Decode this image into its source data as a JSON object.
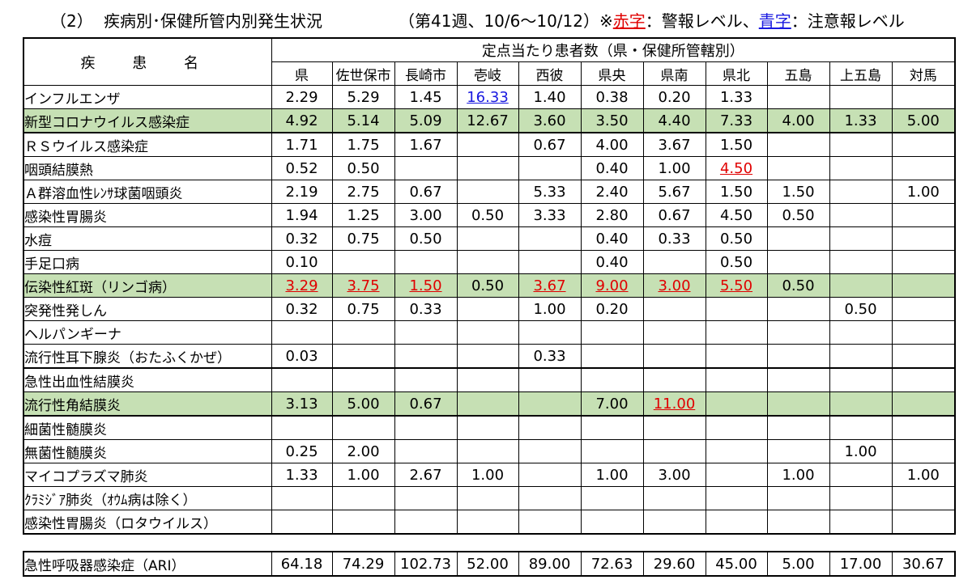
{
  "heading": {
    "section": "（2）",
    "title": "疾病別･保健所管内別発生状況",
    "week_pre": "（第41週、10/6～10/12）※",
    "red_key": "赤字",
    "red_desc": "：警報レベル、",
    "blue_key": "青字",
    "blue_desc": "：注意報レベル"
  },
  "legend_colors": {
    "alarm": "#e00000",
    "caution": "#1a1ae0",
    "highlight": "#c6e0b4"
  },
  "table": {
    "name_header": "疾 患 名",
    "group_header": "定点当たり患者数（県・保健所管轄別）",
    "regions": [
      "県",
      "佐世保市",
      "長崎市",
      "壱岐",
      "西彼",
      "県央",
      "県南",
      "県北",
      "五島",
      "上五島",
      "対馬"
    ],
    "rows": [
      {
        "name": "インフルエンザ",
        "values": [
          "2.29",
          "5.29",
          "1.45",
          "16.33",
          "1.40",
          "0.38",
          "0.20",
          "1.33",
          "",
          "",
          ""
        ],
        "flags": [
          "",
          "",
          "",
          "caution",
          "",
          "",
          "",
          "",
          "",
          "",
          ""
        ],
        "highlight": false,
        "top": false
      },
      {
        "name": "新型コロナウイルス感染症",
        "values": [
          "4.92",
          "5.14",
          "5.09",
          "12.67",
          "3.60",
          "3.50",
          "4.40",
          "7.33",
          "4.00",
          "1.33",
          "5.00"
        ],
        "flags": [
          "",
          "",
          "",
          "",
          "",
          "",
          "",
          "",
          "",
          "",
          ""
        ],
        "highlight": true,
        "top": false
      },
      {
        "name": "ＲＳウイルス感染症",
        "values": [
          "1.71",
          "1.75",
          "1.67",
          "",
          "0.67",
          "4.00",
          "3.67",
          "1.50",
          "",
          "",
          ""
        ],
        "flags": [
          "",
          "",
          "",
          "",
          "",
          "",
          "",
          "",
          "",
          "",
          ""
        ],
        "highlight": false,
        "top": true
      },
      {
        "name": "咽頭結膜熱",
        "values": [
          "0.52",
          "0.50",
          "",
          "",
          "",
          "0.40",
          "1.00",
          "4.50",
          "",
          "",
          ""
        ],
        "flags": [
          "",
          "",
          "",
          "",
          "",
          "",
          "",
          "alarm",
          "",
          "",
          ""
        ],
        "highlight": false,
        "top": false
      },
      {
        "name": "Ａ群溶血性ﾚﾝｻ球菌咽頭炎",
        "values": [
          "2.19",
          "2.75",
          "0.67",
          "",
          "5.33",
          "2.40",
          "5.67",
          "1.50",
          "1.50",
          "",
          "1.00"
        ],
        "flags": [
          "",
          "",
          "",
          "",
          "",
          "",
          "",
          "",
          "",
          "",
          ""
        ],
        "highlight": false,
        "top": false
      },
      {
        "name": "感染性胃腸炎",
        "values": [
          "1.94",
          "1.25",
          "3.00",
          "0.50",
          "3.33",
          "2.80",
          "0.67",
          "4.50",
          "0.50",
          "",
          ""
        ],
        "flags": [
          "",
          "",
          "",
          "",
          "",
          "",
          "",
          "",
          "",
          "",
          ""
        ],
        "highlight": false,
        "top": false
      },
      {
        "name": "水痘",
        "values": [
          "0.32",
          "0.75",
          "0.50",
          "",
          "",
          "0.40",
          "0.33",
          "0.50",
          "",
          "",
          ""
        ],
        "flags": [
          "",
          "",
          "",
          "",
          "",
          "",
          "",
          "",
          "",
          "",
          ""
        ],
        "highlight": false,
        "top": false
      },
      {
        "name": "手足口病",
        "values": [
          "0.10",
          "",
          "",
          "",
          "",
          "0.40",
          "",
          "0.50",
          "",
          "",
          ""
        ],
        "flags": [
          "",
          "",
          "",
          "",
          "",
          "",
          "",
          "",
          "",
          "",
          ""
        ],
        "highlight": false,
        "top": false
      },
      {
        "name": "伝染性紅斑（リンゴ病）",
        "values": [
          "3.29",
          "3.75",
          "1.50",
          "0.50",
          "3.67",
          "9.00",
          "3.00",
          "5.50",
          "0.50",
          "",
          ""
        ],
        "flags": [
          "alarm",
          "alarm",
          "alarm",
          "",
          "alarm",
          "alarm",
          "alarm",
          "alarm",
          "",
          "",
          ""
        ],
        "highlight": true,
        "top": false
      },
      {
        "name": "突発性発しん",
        "values": [
          "0.32",
          "0.75",
          "0.33",
          "",
          "1.00",
          "0.20",
          "",
          "",
          "",
          "0.50",
          ""
        ],
        "flags": [
          "",
          "",
          "",
          "",
          "",
          "",
          "",
          "",
          "",
          "",
          ""
        ],
        "highlight": false,
        "top": false
      },
      {
        "name": "ヘルパンギーナ",
        "values": [
          "",
          "",
          "",
          "",
          "",
          "",
          "",
          "",
          "",
          "",
          ""
        ],
        "flags": [
          "",
          "",
          "",
          "",
          "",
          "",
          "",
          "",
          "",
          "",
          ""
        ],
        "highlight": false,
        "top": false
      },
      {
        "name": "流行性耳下腺炎（おたふくかぜ）",
        "values": [
          "0.03",
          "",
          "",
          "",
          "0.33",
          "",
          "",
          "",
          "",
          "",
          ""
        ],
        "flags": [
          "",
          "",
          "",
          "",
          "",
          "",
          "",
          "",
          "",
          "",
          ""
        ],
        "highlight": false,
        "top": false
      },
      {
        "name": "急性出血性結膜炎",
        "values": [
          "",
          "",
          "",
          "",
          "",
          "",
          "",
          "",
          "",
          "",
          ""
        ],
        "flags": [
          "",
          "",
          "",
          "",
          "",
          "",
          "",
          "",
          "",
          "",
          ""
        ],
        "highlight": false,
        "top": true
      },
      {
        "name": "流行性角結膜炎",
        "values": [
          "3.13",
          "5.00",
          "0.67",
          "",
          "",
          "7.00",
          "11.00",
          "",
          "",
          "",
          ""
        ],
        "flags": [
          "",
          "",
          "",
          "",
          "",
          "",
          "alarm",
          "",
          "",
          "",
          ""
        ],
        "highlight": true,
        "top": false
      },
      {
        "name": "細菌性髄膜炎",
        "values": [
          "",
          "",
          "",
          "",
          "",
          "",
          "",
          "",
          "",
          "",
          ""
        ],
        "flags": [
          "",
          "",
          "",
          "",
          "",
          "",
          "",
          "",
          "",
          "",
          ""
        ],
        "highlight": false,
        "top": true
      },
      {
        "name": "無菌性髄膜炎",
        "values": [
          "0.25",
          "2.00",
          "",
          "",
          "",
          "",
          "",
          "",
          "",
          "1.00",
          ""
        ],
        "flags": [
          "",
          "",
          "",
          "",
          "",
          "",
          "",
          "",
          "",
          "",
          ""
        ],
        "highlight": false,
        "top": false
      },
      {
        "name": "マイコプラズマ肺炎",
        "values": [
          "1.33",
          "1.00",
          "2.67",
          "1.00",
          "",
          "1.00",
          "3.00",
          "",
          "1.00",
          "",
          "1.00"
        ],
        "flags": [
          "",
          "",
          "",
          "",
          "",
          "",
          "",
          "",
          "",
          "",
          ""
        ],
        "highlight": false,
        "top": false
      },
      {
        "name": "ｸﾗﾐｼﾞｱ肺炎（ｵｳﾑ病は除く）",
        "values": [
          "",
          "",
          "",
          "",
          "",
          "",
          "",
          "",
          "",
          "",
          ""
        ],
        "flags": [
          "",
          "",
          "",
          "",
          "",
          "",
          "",
          "",
          "",
          "",
          ""
        ],
        "highlight": false,
        "top": false
      },
      {
        "name": "感染性胃腸炎（ロタウイルス）",
        "values": [
          "",
          "",
          "",
          "",
          "",
          "",
          "",
          "",
          "",
          "",
          ""
        ],
        "flags": [
          "",
          "",
          "",
          "",
          "",
          "",
          "",
          "",
          "",
          "",
          ""
        ],
        "highlight": false,
        "top": false
      }
    ]
  },
  "ari_row": {
    "name": "急性呼吸器感染症（ARI）",
    "values": [
      "64.18",
      "74.29",
      "102.73",
      "52.00",
      "89.00",
      "72.63",
      "29.60",
      "45.00",
      "5.00",
      "17.00",
      "30.67"
    ]
  }
}
